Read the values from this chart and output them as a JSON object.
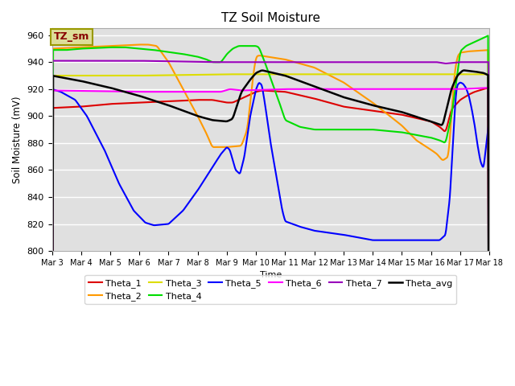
{
  "title": "TZ Soil Moisture",
  "xlabel": "Time",
  "ylabel": "Soil Moisture (mV)",
  "ylim": [
    800,
    965
  ],
  "yticks": [
    800,
    820,
    840,
    860,
    880,
    900,
    920,
    940,
    960
  ],
  "bg_color": "#e0e0e0",
  "colors": {
    "Theta_1": "#dd0000",
    "Theta_2": "#ff9900",
    "Theta_3": "#dddd00",
    "Theta_4": "#00dd00",
    "Theta_5": "#0000ff",
    "Theta_6": "#ff00ff",
    "Theta_7": "#9900bb",
    "Theta_avg": "#000000"
  },
  "legend_box_color": "#dddd99",
  "legend_box_text": "TZ_sm",
  "legend_box_text_color": "#880000",
  "n_days": 15,
  "x_tick_labels": [
    "Mar 3",
    "Mar 4",
    "Mar 5",
    "Mar 6",
    "Mar 7",
    "Mar 8",
    "Mar 9",
    "Mar 10",
    "Mar 11",
    "Mar 12",
    "Mar 13",
    "Mar 14",
    "Mar 15",
    "Mar 16",
    "Mar 17",
    "Mar 18"
  ]
}
